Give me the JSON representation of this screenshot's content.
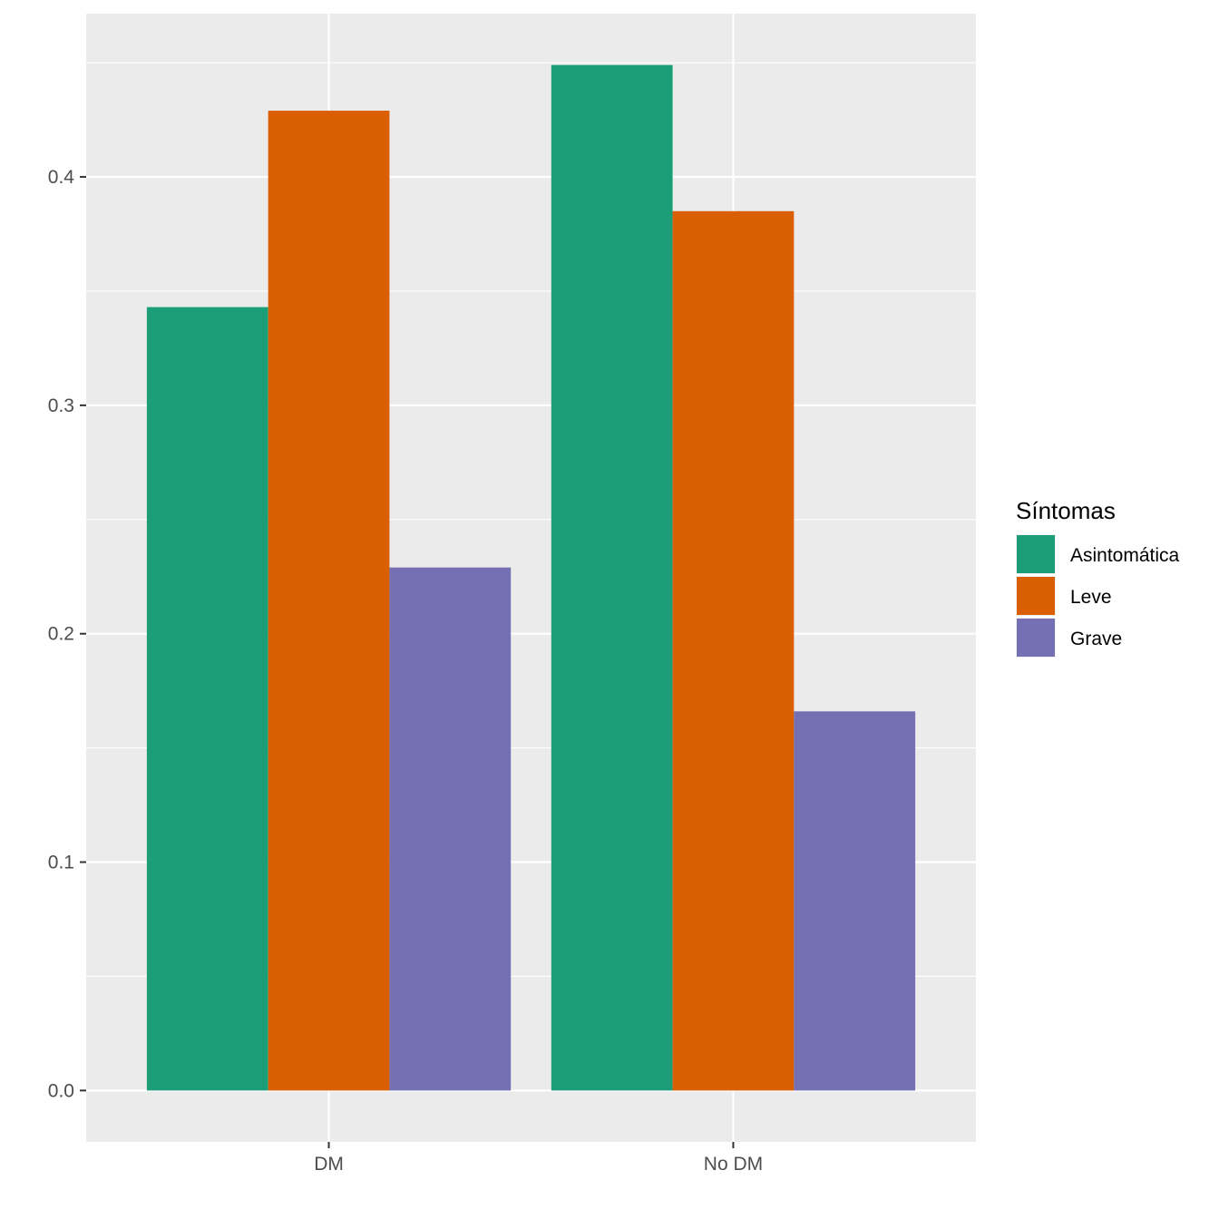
{
  "chart_data": {
    "type": "bar",
    "categories": [
      "DM",
      "No DM"
    ],
    "series": [
      {
        "name": "Asintomática",
        "values": [
          0.343,
          0.449
        ],
        "color": "#1B9E77"
      },
      {
        "name": "Leve",
        "values": [
          0.429,
          0.385
        ],
        "color": "#D95F02"
      },
      {
        "name": "Grave",
        "values": [
          0.229,
          0.166
        ],
        "color": "#7570B3"
      }
    ],
    "title": "",
    "xlabel": "",
    "ylabel": "",
    "ylim": [
      -0.0225,
      0.4715
    ],
    "yticks": [
      0.0,
      0.1,
      0.2,
      0.3,
      0.4
    ],
    "ytick_labels": [
      "0.0",
      "0.1",
      "0.2",
      "0.3",
      "0.4"
    ],
    "grid": true,
    "legend": {
      "title": "Síntomas",
      "placement": "right"
    }
  }
}
